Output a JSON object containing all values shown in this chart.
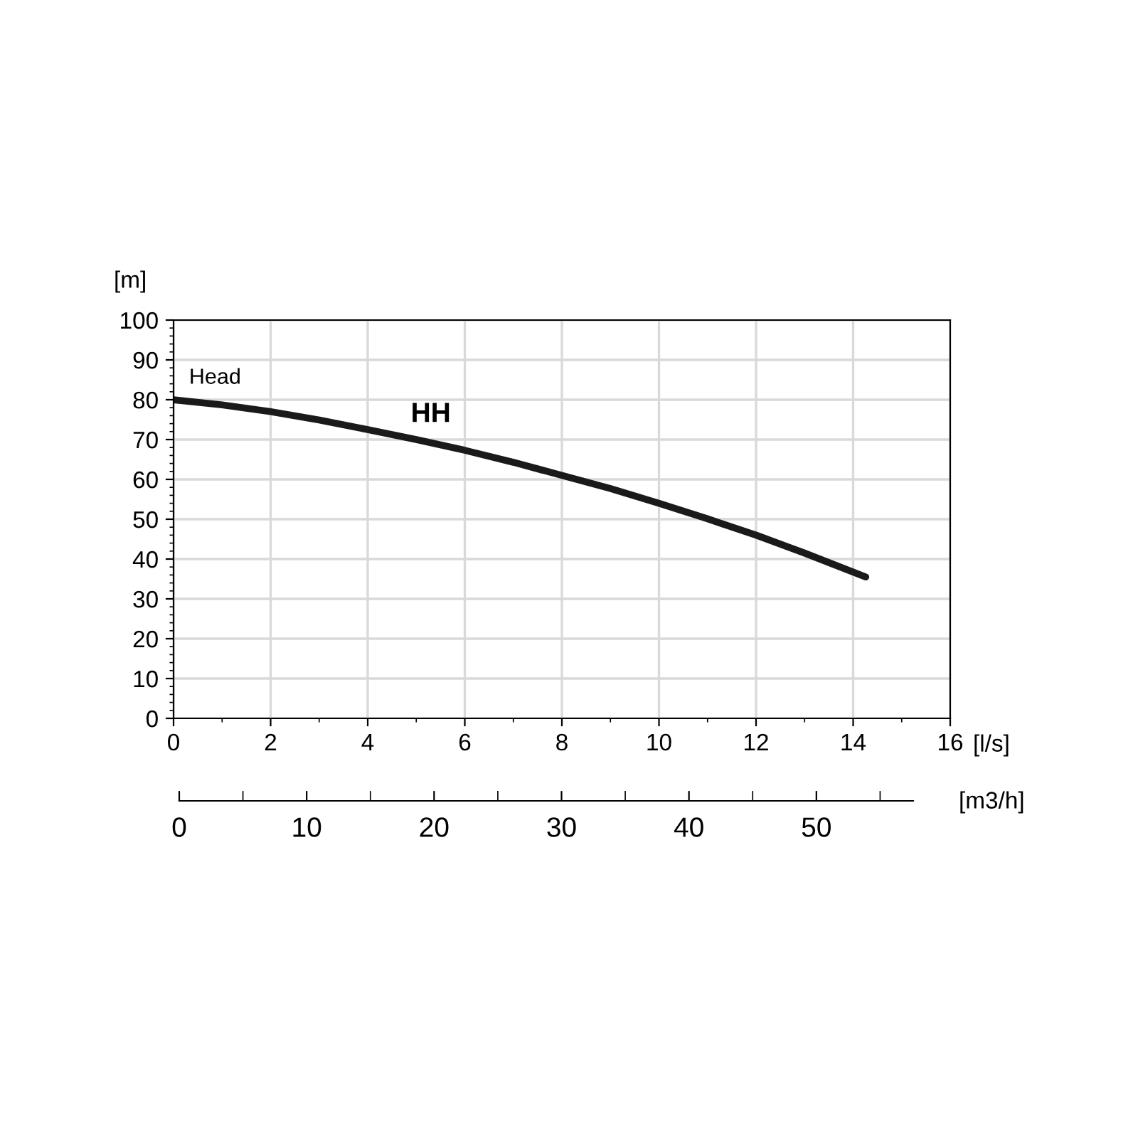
{
  "chart_data": {
    "type": "line",
    "ylabel": "[m]",
    "xlabel": "[l/s]",
    "x2label": "[m3/h]",
    "annotations": [
      "Head"
    ],
    "series": [
      {
        "name": "HH",
        "color": "#1a1a1a",
        "x": [
          0,
          1,
          2,
          3,
          4,
          5,
          6,
          7,
          8,
          9,
          10,
          11,
          12,
          13,
          14.26
        ],
        "values": [
          80,
          78.7,
          77,
          74.9,
          72.5,
          70,
          67.3,
          64.3,
          61,
          57.7,
          54,
          50.1,
          46,
          41.5,
          35.5
        ]
      }
    ],
    "xlim": [
      0,
      16
    ],
    "xticks": [
      0,
      2,
      4,
      6,
      8,
      10,
      12,
      14,
      16
    ],
    "ylim": [
      0,
      100
    ],
    "yticks": [
      0,
      10,
      20,
      30,
      40,
      50,
      60,
      70,
      80,
      90,
      100
    ],
    "x2lim": [
      0,
      57.6
    ],
    "x2ticks": [
      0,
      10,
      20,
      30,
      40,
      50
    ],
    "grid": true,
    "marker": "none",
    "line_style": "solid",
    "legend": false
  }
}
